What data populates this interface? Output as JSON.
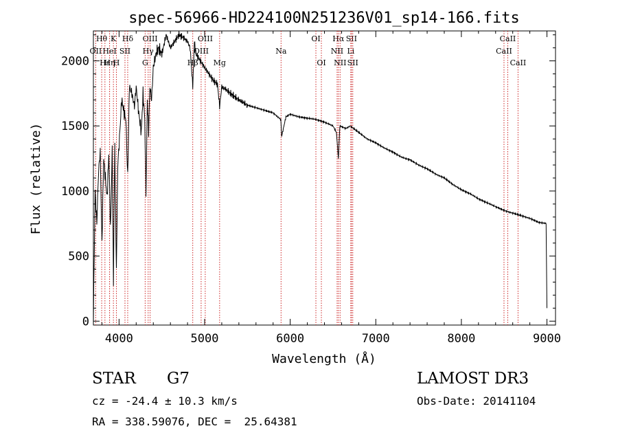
{
  "chart_data": {
    "type": "line",
    "title": "spec-56966-HD224100N251236V01_sp14-166.fits",
    "xlabel": "Wavelength (Å)",
    "ylabel": "Flux (relative)",
    "xlim": [
      3700,
      9100
    ],
    "ylim": [
      -30,
      2230
    ],
    "xticks": [
      4000,
      5000,
      6000,
      7000,
      8000,
      9000
    ],
    "yticks": [
      0,
      500,
      1000,
      1500,
      2000
    ],
    "series": [
      {
        "name": "flux",
        "x": [
          3700,
          3720,
          3740,
          3760,
          3780,
          3800,
          3820,
          3840,
          3860,
          3880,
          3900,
          3920,
          3934,
          3950,
          3969,
          3985,
          4000,
          4030,
          4060,
          4080,
          4101,
          4120,
          4150,
          4180,
          4200,
          4230,
          4260,
          4280,
          4300,
          4315,
          4330,
          4345,
          4360,
          4380,
          4400,
          4430,
          4460,
          4500,
          4550,
          4600,
          4650,
          4700,
          4750,
          4800,
          4830,
          4861,
          4880,
          4900,
          4950,
          5000,
          5050,
          5100,
          5150,
          5175,
          5200,
          5250,
          5300,
          5400,
          5500,
          5600,
          5700,
          5800,
          5890,
          5900,
          5950,
          6000,
          6100,
          6200,
          6300,
          6400,
          6500,
          6540,
          6563,
          6580,
          6650,
          6700,
          6800,
          6900,
          7000,
          7100,
          7200,
          7300,
          7400,
          7500,
          7600,
          7700,
          7800,
          7900,
          8000,
          8100,
          8200,
          8300,
          8400,
          8500,
          8600,
          8700,
          8800,
          8900,
          8990,
          9000
        ],
        "y": [
          0,
          1000,
          750,
          1150,
          1300,
          600,
          1250,
          1100,
          950,
          1280,
          700,
          1320,
          300,
          1350,
          400,
          1200,
          1350,
          1700,
          1600,
          1550,
          1100,
          1800,
          1750,
          1650,
          1800,
          1600,
          1450,
          1750,
          1550,
          1000,
          1700,
          1450,
          1800,
          1700,
          1950,
          2050,
          2100,
          2050,
          2200,
          2100,
          2150,
          2200,
          2180,
          2150,
          2100,
          1800,
          2150,
          2050,
          2000,
          1950,
          1900,
          1850,
          1820,
          1650,
          1800,
          1780,
          1750,
          1700,
          1660,
          1640,
          1620,
          1600,
          1550,
          1420,
          1570,
          1590,
          1570,
          1560,
          1550,
          1530,
          1500,
          1450,
          1250,
          1500,
          1480,
          1500,
          1450,
          1400,
          1370,
          1330,
          1300,
          1260,
          1240,
          1200,
          1170,
          1130,
          1100,
          1050,
          1010,
          980,
          940,
          910,
          880,
          850,
          830,
          810,
          790,
          760,
          750,
          100
        ]
      }
    ],
    "line_markers": [
      {
        "label": "Hθ",
        "x": 3797,
        "row": 0
      },
      {
        "label": "K",
        "x": 3934,
        "row": 0
      },
      {
        "label": "Hδ",
        "x": 4101,
        "row": 0
      },
      {
        "label": "OIII",
        "x": 4363,
        "row": 0
      },
      {
        "label": "OIII",
        "x": 5007,
        "row": 0
      },
      {
        "label": "OI",
        "x": 6300,
        "row": 0
      },
      {
        "label": "Hα",
        "x": 6563,
        "row": 0
      },
      {
        "label": "SII",
        "x": 6716,
        "row": 0
      },
      {
        "label": "CaII",
        "x": 8542,
        "row": 0
      },
      {
        "label": "OII",
        "x": 3727,
        "row": 1
      },
      {
        "label": "HeI",
        "x": 3889,
        "row": 1
      },
      {
        "label": "SII",
        "x": 4069,
        "row": 1
      },
      {
        "label": "Hγ",
        "x": 4340,
        "row": 1
      },
      {
        "label": "OIII",
        "x": 4959,
        "row": 1
      },
      {
        "label": "Na",
        "x": 5893,
        "row": 1
      },
      {
        "label": "NII",
        "x": 6548,
        "row": 1
      },
      {
        "label": "Li",
        "x": 6708,
        "row": 1
      },
      {
        "label": "CaII",
        "x": 8498,
        "row": 1
      },
      {
        "label": "Hε",
        "x": 3835,
        "row": 2
      },
      {
        "label": "Hη",
        "x": 3889,
        "row": 2
      },
      {
        "label": "H",
        "x": 3969,
        "row": 2
      },
      {
        "label": "G",
        "x": 4305,
        "row": 2
      },
      {
        "label": "Hβ",
        "x": 4861,
        "row": 2
      },
      {
        "label": "Mg",
        "x": 5175,
        "row": 2
      },
      {
        "label": "OI",
        "x": 6364,
        "row": 2
      },
      {
        "label": "NII",
        "x": 6583,
        "row": 2
      },
      {
        "label": "SII",
        "x": 6731,
        "row": 2
      },
      {
        "label": "CaII",
        "x": 8662,
        "row": 2
      }
    ]
  },
  "info": {
    "object_class": "STAR",
    "subclass": "G7",
    "survey": "LAMOST DR3",
    "cz": "cz = -24.4 ± 10.3 km/s",
    "obs_date": "Obs-Date: 20141104",
    "coords": "RA = 338.59076, DEC =  25.64381"
  }
}
